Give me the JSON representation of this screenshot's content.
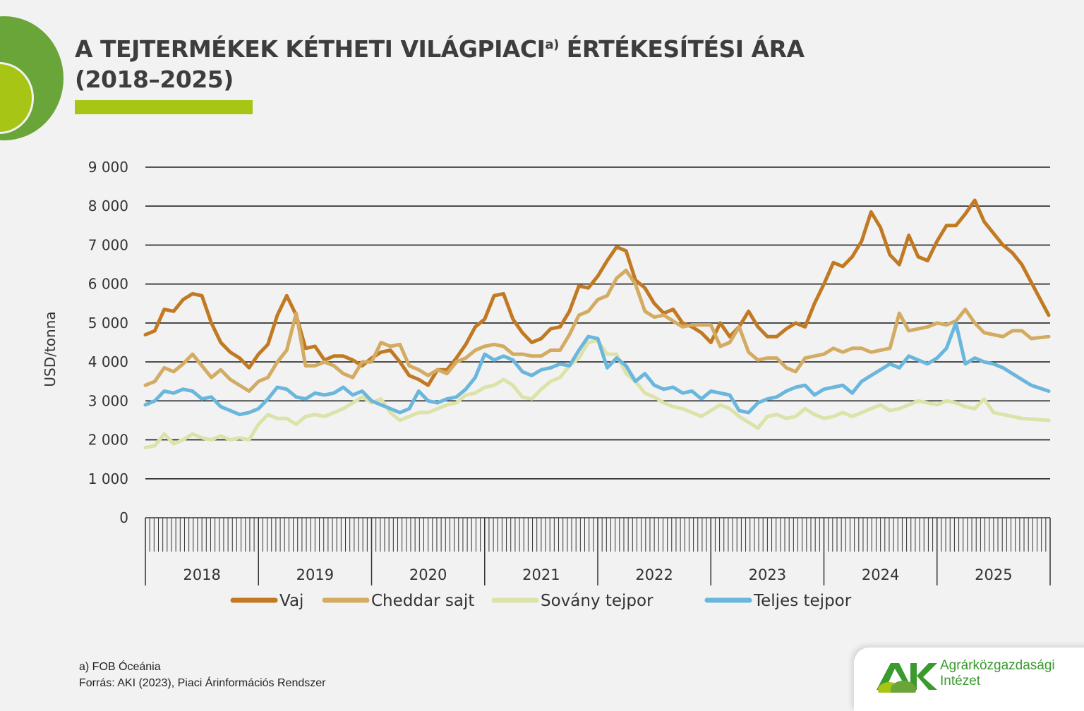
{
  "title": {
    "line1_main": "A TEJTERMÉKEK KÉTHETI VILÁGPIACI",
    "line1_sup": "a)",
    "line1_end": " ÉRTÉKESÍTÉSI ÁRA",
    "line2": "(2018–2025)"
  },
  "footnote": {
    "note": "a) FOB Óceánia",
    "source": "Forrás: AKI (2023), Piaci Árinformációs Rendszer"
  },
  "logo": {
    "mark": "AKI",
    "line1": "Agrárközgazdasági",
    "line2": "Intézet"
  },
  "colors": {
    "background": "#f2f2f2",
    "accent_green": "#6aa53a",
    "accent_lime": "#a6c514"
  },
  "chart_data": {
    "type": "line",
    "title": "A tejtermékek kétheti világpiaci értékesítési ára (2018–2025)",
    "xlabel": "",
    "ylabel": "USD/tonna",
    "ylim": [
      0,
      9000
    ],
    "yticks": [
      0,
      1000,
      2000,
      3000,
      4000,
      5000,
      6000,
      7000,
      8000,
      9000
    ],
    "ytick_labels": [
      "0",
      "1 000",
      "2 000",
      "3 000",
      "4 000",
      "5 000",
      "6 000",
      "7 000",
      "8 000",
      "9 000"
    ],
    "grid": true,
    "legend_position": "bottom",
    "x_categories": [
      "2018",
      "2019",
      "2020",
      "2021",
      "2022",
      "2023",
      "2024",
      "2025"
    ],
    "x_note": "approx. monthly samples of biweekly series; 12 per year, 2025 partial",
    "series": [
      {
        "name": "Vaj",
        "color": "#c17a23",
        "values": [
          4700,
          4800,
          5350,
          5300,
          5600,
          5750,
          5700,
          5000,
          4500,
          4250,
          4100,
          3850,
          4200,
          4450,
          5200,
          5700,
          5200,
          4350,
          4400,
          4050,
          4150,
          4150,
          4050,
          3900,
          4100,
          4250,
          4300,
          4000,
          3650,
          3550,
          3400,
          3800,
          3800,
          4100,
          4450,
          4900,
          5100,
          5700,
          5750,
          5100,
          4750,
          4500,
          4600,
          4850,
          4900,
          5300,
          5950,
          5900,
          6200,
          6600,
          6950,
          6850,
          6100,
          5900,
          5500,
          5250,
          5350,
          5000,
          4900,
          4750,
          4500,
          5000,
          4650,
          4900,
          5300,
          4900,
          4650,
          4650,
          4850,
          5000,
          4900,
          5500,
          6000,
          6550,
          6450,
          6700,
          7100,
          7850,
          7450,
          6750,
          6500,
          7250,
          6700,
          6600,
          7100,
          7500,
          7500,
          7800,
          8150,
          7600,
          7300,
          7000,
          6800,
          6500,
          5200
        ]
      },
      {
        "name": "Cheddar sajt",
        "color": "#d3ab62",
        "values": [
          3400,
          3500,
          3850,
          3750,
          3950,
          4200,
          3900,
          3600,
          3800,
          3550,
          3400,
          3250,
          3500,
          3600,
          4000,
          4300,
          5250,
          3900,
          3900,
          4000,
          3900,
          3700,
          3600,
          4000,
          4000,
          4500,
          4400,
          4450,
          3900,
          3800,
          3650,
          3800,
          3700,
          4000,
          4100,
          4300,
          4400,
          4450,
          4400,
          4200,
          4200,
          4150,
          4150,
          4300,
          4300,
          4700,
          5200,
          5300,
          5600,
          5700,
          6150,
          6350,
          6000,
          5300,
          5150,
          5200,
          5050,
          4900,
          4950,
          4950,
          4950,
          4400,
          4500,
          4900,
          4250,
          4050,
          4100,
          4100,
          3850,
          3750,
          4100,
          4150,
          4200,
          4350,
          4250,
          4350,
          4350,
          4250,
          4300,
          4350,
          5250,
          4800,
          4850,
          4900,
          5000,
          4950,
          5050,
          5350,
          5000,
          4750,
          4700,
          4650,
          4800,
          4800,
          4600,
          4650
        ]
      },
      {
        "name": "Sovány tejpor",
        "color": "#dce2a8",
        "values": [
          1800,
          1850,
          2150,
          1900,
          2000,
          2150,
          2050,
          2000,
          2100,
          2000,
          2050,
          2000,
          2400,
          2650,
          2550,
          2550,
          2400,
          2600,
          2650,
          2600,
          2700,
          2800,
          2950,
          3100,
          2950,
          3050,
          2700,
          2500,
          2600,
          2700,
          2700,
          2800,
          2900,
          2950,
          3150,
          3200,
          3350,
          3400,
          3550,
          3400,
          3100,
          3050,
          3300,
          3500,
          3600,
          3900,
          4100,
          4500,
          4550,
          4200,
          4200,
          3700,
          3500,
          3200,
          3100,
          2950,
          2850,
          2800,
          2700,
          2600,
          2750,
          2900,
          2800,
          2600,
          2450,
          2300,
          2600,
          2650,
          2550,
          2600,
          2800,
          2650,
          2550,
          2600,
          2700,
          2600,
          2700,
          2800,
          2900,
          2750,
          2800,
          2900,
          3000,
          2950,
          2900,
          3000,
          2950,
          2850,
          2800,
          3050,
          2700,
          2650,
          2600,
          2550,
          2500
        ]
      },
      {
        "name": "Teljes tejpor",
        "color": "#6ab6dc",
        "values": [
          2900,
          3000,
          3250,
          3200,
          3300,
          3250,
          3050,
          3100,
          2850,
          2750,
          2650,
          2700,
          2800,
          3050,
          3350,
          3300,
          3100,
          3050,
          3200,
          3150,
          3200,
          3350,
          3150,
          3250,
          3000,
          2900,
          2800,
          2700,
          2800,
          3250,
          3000,
          2950,
          3050,
          3100,
          3300,
          3600,
          4200,
          4050,
          4150,
          4050,
          3750,
          3650,
          3800,
          3850,
          3950,
          3900,
          4300,
          4650,
          4600,
          3850,
          4100,
          3900,
          3500,
          3700,
          3400,
          3300,
          3350,
          3200,
          3250,
          3050,
          3250,
          3200,
          3150,
          2750,
          2700,
          2950,
          3050,
          3100,
          3250,
          3350,
          3400,
          3150,
          3300,
          3350,
          3400,
          3200,
          3500,
          3650,
          3800,
          3950,
          3850,
          4150,
          4050,
          3950,
          4100,
          4350,
          5000,
          3950,
          4100,
          4000,
          3950,
          3850,
          3700,
          3550,
          3400,
          3250
        ]
      }
    ]
  }
}
